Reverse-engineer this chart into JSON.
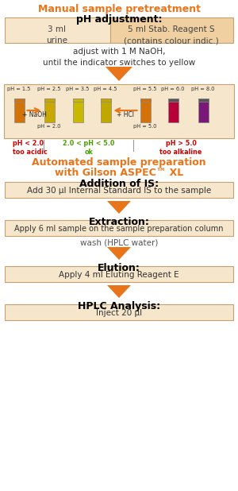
{
  "bg_color": "#ffffff",
  "orange": "#E8751A",
  "light_orange_bg": "#F5E6CC",
  "light_orange_bg2": "#F0D0A0",
  "box_border": "#C8A070",
  "title1": "Manual sample pretreatment",
  "title2": "pH adjustment:",
  "box1_left": "3 ml\nurine",
  "box1_right": "5 ml Stab. Reagent S\n(contains colour indic.)",
  "adjust_text": "adjust with 1 M NaOH,\nuntil the indicator switches to yellow",
  "auto_title1": "Automated sample preparation",
  "auto_title2": "with Gilson ASPEC™ XL",
  "addition_title": "Addition of IS:",
  "addition_box": "Add 30 μl Internal Standard IS to the sample",
  "extraction_title": "Extraction:",
  "extraction_box": "Apply 6 ml sample on the sample preparation column",
  "wash_text": "wash (HPLC water)",
  "elution_title": "Elution:",
  "elution_box": "Apply 4 ml Eluting Reagent E",
  "hplc_title": "HPLC Analysis:",
  "hplc_box": "Inject 20 μl",
  "ph_labels": [
    "pH = 1.5",
    "pH = 2.5",
    "pH = 3.5",
    "pH = 4.5",
    "pH = 5.5",
    "pH = 6.0",
    "pH = 8.0"
  ],
  "tube_colors": [
    "#D4720A",
    "#C8A800",
    "#C8B800",
    "#C0A800",
    "#D4720A",
    "#B8003A",
    "#7A1878"
  ],
  "ph_acidic_label": "pH < 2.0\ntoo acidic",
  "ph_ok_label": "2.0 < pH < 5.0\nok",
  "ph_alkaline_label": "pH > 5.0\ntoo alkaline",
  "ph_acidic_color": "#CC0000",
  "ph_ok_color": "#4A9E00",
  "ph_alkaline_color": "#CC0000",
  "naoh_label": "+ NaOH",
  "hcl_label": "+ HCl",
  "ph20_label": "pH = 2.0",
  "ph50_label": "pH = 5.0"
}
